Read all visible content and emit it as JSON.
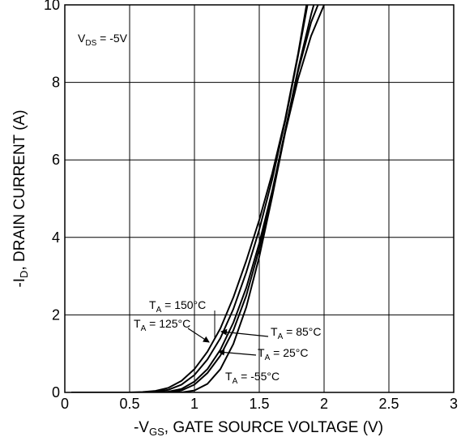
{
  "chart_data": {
    "type": "line",
    "title": "",
    "xlabel_prefix": "-V",
    "xlabel_sub": "GS",
    "xlabel_rest": ", GATE SOURCE VOLTAGE (V)",
    "ylabel_prefix": "-I",
    "ylabel_sub": "D",
    "ylabel_rest": ", DRAIN CURRENT (A)",
    "xlim": [
      0,
      3
    ],
    "ylim": [
      0,
      10
    ],
    "xticks": [
      {
        "value": 0,
        "label": "0"
      },
      {
        "value": 0.5,
        "label": "0.5"
      },
      {
        "value": 1,
        "label": "1"
      },
      {
        "value": 1.5,
        "label": "1.5"
      },
      {
        "value": 2,
        "label": "2"
      },
      {
        "value": 2.5,
        "label": "2.5"
      },
      {
        "value": 3,
        "label": "3"
      }
    ],
    "yticks": [
      {
        "value": 0,
        "label": "0"
      },
      {
        "value": 2,
        "label": "2"
      },
      {
        "value": 4,
        "label": "4"
      },
      {
        "value": 6,
        "label": "6"
      },
      {
        "value": 8,
        "label": "8"
      },
      {
        "value": 10,
        "label": "10"
      }
    ],
    "grid": true,
    "condition": {
      "prefix": "V",
      "sub": "DS",
      "rest": " = -5V"
    },
    "series": [
      {
        "name_prefix": "T",
        "name_sub": "A",
        "name_rest": " = 150°C",
        "x": [
          0.05,
          0.5,
          0.6,
          0.7,
          0.8,
          0.9,
          1.0,
          1.1,
          1.2,
          1.3,
          1.4,
          1.5,
          1.6,
          1.7,
          1.8,
          1.88
        ],
        "y": [
          0,
          0,
          0.01,
          0.04,
          0.12,
          0.3,
          0.6,
          1.05,
          1.65,
          2.45,
          3.4,
          4.45,
          5.65,
          7.05,
          8.75,
          10.3
        ]
      },
      {
        "name_prefix": "T",
        "name_sub": "A",
        "name_rest": " = 125°C",
        "x": [
          0.05,
          0.6,
          0.7,
          0.8,
          0.9,
          1.0,
          1.1,
          1.2,
          1.3,
          1.4,
          1.5,
          1.6,
          1.7,
          1.8,
          1.9
        ],
        "y": [
          0,
          0,
          0.02,
          0.07,
          0.2,
          0.45,
          0.85,
          1.4,
          2.15,
          3.1,
          4.2,
          5.5,
          7.0,
          8.7,
          10.5
        ]
      },
      {
        "name_prefix": "T",
        "name_sub": "A",
        "name_rest": " = 85°C",
        "x": [
          0.05,
          0.7,
          0.8,
          0.9,
          1.0,
          1.1,
          1.2,
          1.3,
          1.4,
          1.5,
          1.6,
          1.7,
          1.8,
          1.9,
          1.97
        ],
        "y": [
          0,
          0,
          0.02,
          0.09,
          0.28,
          0.6,
          1.1,
          1.8,
          2.7,
          3.85,
          5.2,
          6.75,
          8.35,
          9.75,
          10.6
        ]
      },
      {
        "name_prefix": "T",
        "name_sub": "A",
        "name_rest": " = 25°C",
        "x": [
          0.05,
          0.8,
          0.9,
          1.0,
          1.1,
          1.2,
          1.3,
          1.4,
          1.5,
          1.6,
          1.7,
          1.8,
          1.9,
          2.0
        ],
        "y": [
          0,
          0,
          0.05,
          0.2,
          0.5,
          0.95,
          1.6,
          2.5,
          3.7,
          5.15,
          6.75,
          8.3,
          9.55,
          10.4
        ]
      },
      {
        "name_prefix": "T",
        "name_sub": "A",
        "name_rest": " = -55°C",
        "x": [
          0.05,
          0.9,
          1.0,
          1.1,
          1.2,
          1.3,
          1.4,
          1.5,
          1.6,
          1.7,
          1.8,
          1.9,
          2.0,
          2.04
        ],
        "y": [
          0,
          0,
          0.05,
          0.22,
          0.6,
          1.25,
          2.2,
          3.5,
          5.05,
          6.7,
          8.1,
          9.2,
          10.0,
          10.4
        ]
      }
    ]
  }
}
